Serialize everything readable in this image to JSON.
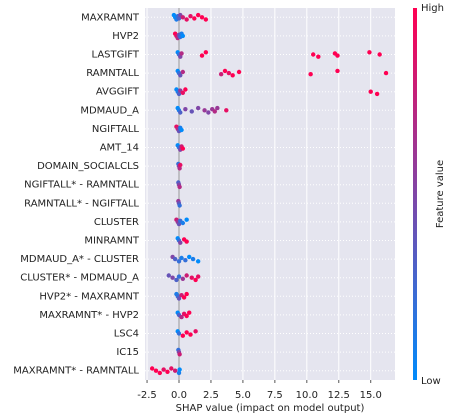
{
  "chart_data": {
    "type": "beeswarm",
    "xlabel": "SHAP value (impact on model output)",
    "xlim": [
      -2.66,
      16.9
    ],
    "xticks": [
      {
        "value": -2.5,
        "label": "-2.5"
      },
      {
        "value": 0,
        "label": "0.0"
      },
      {
        "value": 2.5,
        "label": "2.5"
      },
      {
        "value": 5,
        "label": "5.0"
      },
      {
        "value": 7.5,
        "label": "7.5"
      },
      {
        "value": 10,
        "label": "10.0"
      },
      {
        "value": 12.5,
        "label": "12.5"
      },
      {
        "value": 15,
        "label": "15.0"
      }
    ],
    "grid": true,
    "colorbar": {
      "label": "Feature value",
      "high": "High",
      "low": "Low",
      "colors": [
        "#008bfb",
        "#ff0052"
      ]
    },
    "series": [
      {
        "name": "MAXRAMNT",
        "values": [
          -0.4,
          -0.3,
          -0.2,
          -0.1,
          0,
          0.1,
          0.3,
          0.6,
          0.9,
          1.2,
          1.5,
          1.8,
          2.1
        ],
        "feature_values": [
          0,
          0,
          0.1,
          0.2,
          0.3,
          0.5,
          0.8,
          0.9,
          0.9,
          1,
          1,
          1,
          1
        ]
      },
      {
        "name": "HVP2",
        "values": [
          -0.3,
          -0.2,
          -0.1,
          0,
          0.1,
          0.2,
          0.3
        ],
        "feature_values": [
          1,
          0.9,
          0.7,
          0.4,
          0.2,
          0.1,
          0
        ]
      },
      {
        "name": "LASTGIFT",
        "values": [
          -0.1,
          0,
          0.1,
          0.2,
          1.8,
          2.1,
          10.5,
          10.9,
          12.2,
          12.4,
          14.9,
          15.7
        ],
        "feature_values": [
          0,
          0.2,
          0.5,
          0.7,
          1,
          1,
          1,
          1,
          1,
          1,
          1,
          1
        ]
      },
      {
        "name": "RAMNTALL",
        "values": [
          -0.1,
          0,
          0.1,
          0.3,
          3.3,
          3.6,
          3.9,
          4.2,
          4.7,
          10.3,
          12.4,
          16.2
        ],
        "feature_values": [
          0,
          0.2,
          0.4,
          0.7,
          0.8,
          1,
          0.9,
          1,
          1,
          1,
          1,
          1
        ]
      },
      {
        "name": "AVGGIFT",
        "values": [
          -0.2,
          -0.1,
          0,
          0.1,
          0.3,
          0.5,
          15.0,
          15.5
        ],
        "feature_values": [
          0,
          0.1,
          0.3,
          0.6,
          0.9,
          1,
          1,
          1
        ]
      },
      {
        "name": "MDMAUD_A",
        "values": [
          -0.1,
          0,
          0.1,
          0.5,
          1.0,
          1.5,
          2.0,
          2.3,
          2.6,
          2.8,
          3.0,
          3.7
        ],
        "feature_values": [
          0,
          0.1,
          0.3,
          0.5,
          0.4,
          0.5,
          0.6,
          0.5,
          0.6,
          0.7,
          0.6,
          0.9
        ]
      },
      {
        "name": "NGIFTALL",
        "values": [
          -0.2,
          -0.1,
          0,
          0.1,
          0.2
        ],
        "feature_values": [
          0.9,
          0.7,
          0.4,
          0.1,
          0
        ]
      },
      {
        "name": "AMT_14",
        "values": [
          -0.1,
          0,
          0.1,
          0.2,
          0.3
        ],
        "feature_values": [
          0,
          0.2,
          0.5,
          0.8,
          1
        ]
      },
      {
        "name": "DOMAIN_SOCIALCLS",
        "values": [
          -0.05,
          0,
          0.05,
          0.1
        ],
        "feature_values": [
          0.2,
          0.5,
          0.7,
          0.9
        ]
      },
      {
        "name": "NGIFTALL* - RAMNTALL",
        "values": [
          -0.05,
          0,
          0.05
        ],
        "feature_values": [
          0.3,
          0.5,
          0.7
        ]
      },
      {
        "name": "RAMNTALL* - NGIFTALL",
        "values": [
          -0.05,
          0,
          0.05
        ],
        "feature_values": [
          0.6,
          0.4,
          0.2
        ]
      },
      {
        "name": "CLUSTER",
        "values": [
          -0.2,
          -0.1,
          0,
          0.1,
          0.3,
          0.6
        ],
        "feature_values": [
          0.8,
          0.6,
          0.4,
          0.2,
          0.1,
          0
        ]
      },
      {
        "name": "MINRAMNT",
        "values": [
          -0.1,
          0,
          0.1,
          0.4,
          0.6
        ],
        "feature_values": [
          0,
          0.2,
          0.5,
          1,
          1
        ]
      },
      {
        "name": "MDMAUD_A* - CLUSTER",
        "values": [
          -0.5,
          -0.3,
          0,
          0.2,
          0.5,
          0.8,
          1.1,
          1.5
        ],
        "feature_values": [
          0.5,
          0.3,
          0.2,
          0.1,
          0.2,
          0,
          0.1,
          0
        ]
      },
      {
        "name": "CLUSTER* - MDMAUD_A",
        "values": [
          -0.8,
          -0.5,
          -0.2,
          0,
          0.3,
          0.6,
          1.0,
          1.3,
          1.5
        ],
        "feature_values": [
          0.4,
          0.5,
          0.3,
          0.2,
          0.6,
          0.8,
          0.9,
          1,
          0.9
        ]
      },
      {
        "name": "HVP2* - MAXRAMNT",
        "values": [
          -0.2,
          -0.1,
          0,
          0.2,
          0.4,
          0.6
        ],
        "feature_values": [
          0.1,
          0.2,
          0.4,
          0.8,
          1,
          1
        ]
      },
      {
        "name": "MAXRAMNT* - HVP2",
        "values": [
          -0.1,
          0,
          0.2,
          0.4,
          0.6,
          0.8
        ],
        "feature_values": [
          0,
          0.3,
          0.7,
          0.9,
          1,
          1
        ]
      },
      {
        "name": "LSC4",
        "values": [
          -0.1,
          0,
          0.3,
          0.6,
          0.9,
          1.3
        ],
        "feature_values": [
          0,
          0.2,
          1,
          1,
          1,
          0.9
        ]
      },
      {
        "name": "IC15",
        "values": [
          -0.05,
          0,
          0.05
        ],
        "feature_values": [
          0.2,
          0.5,
          0.8
        ]
      },
      {
        "name": "MAXRAMNT* - RAMNTALL",
        "values": [
          -2.1,
          -1.8,
          -1.5,
          -1.2,
          -0.9,
          -0.6,
          -0.3,
          0,
          0.05
        ],
        "feature_values": [
          1,
          1,
          1,
          0.9,
          1,
          0.9,
          0.8,
          0.1,
          0
        ]
      }
    ]
  }
}
